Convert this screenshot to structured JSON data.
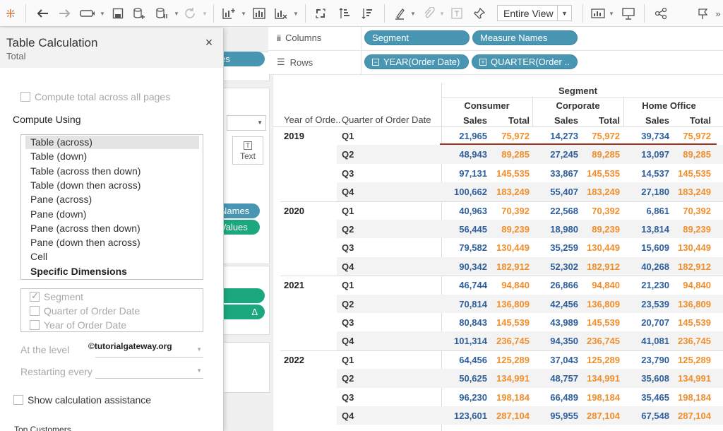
{
  "toolbar": {
    "icons": [
      "tableau-logo-icon",
      "undo-icon",
      "redo-icon",
      "replay-icon",
      "save-icon",
      "new-datasource-icon",
      "pause-updates-icon",
      "refresh-icon",
      "new-worksheet-icon",
      "duplicate-icon",
      "clear-sheet-icon",
      "swap-icon",
      "sort-ascending-icon",
      "sort-descending-icon",
      "highlight-icon",
      "group-icon",
      "label-icon",
      "pin-icon",
      "show-me-icon",
      "presentation-icon",
      "share-icon",
      "pin-icon-2"
    ],
    "fit_label": "Entire View",
    "more": "»"
  },
  "shelves": {
    "columns_label": "Columns",
    "rows_label": "Rows",
    "columns_pills": [
      "Segment",
      "Measure Names"
    ],
    "rows_pills": [
      "YEAR(Order Date)",
      "QUARTER(Order .."
    ]
  },
  "background": {
    "pill_names": "es",
    "text_button": "Text",
    "measure_names": "Names",
    "measure_values": "Values",
    "delta_icon": "Δ",
    "bottom_text": "Top Customers"
  },
  "dialog": {
    "title": "Table Calculation",
    "subtitle": "Total",
    "compute_total_label": "Compute total across all pages",
    "compute_using_label": "Compute Using",
    "options": [
      "Table (across)",
      "Table (down)",
      "Table (across then down)",
      "Table (down then across)",
      "Pane (across)",
      "Pane (down)",
      "Pane (across then down)",
      "Pane (down then across)",
      "Cell",
      "Specific Dimensions"
    ],
    "selected_option": "Table (across)",
    "dimensions": [
      {
        "label": "Segment",
        "checked": true
      },
      {
        "label": "Quarter of Order Date",
        "checked": false
      },
      {
        "label": "Year of Order Date",
        "checked": false
      }
    ],
    "at_level_label": "At the level",
    "restarting_label": "Restarting every",
    "show_assist_label": "Show calculation assistance",
    "watermark": "©tutorialgateway.org"
  },
  "table": {
    "segment_header": "Segment",
    "year_header": "Year of Orde..",
    "quarter_header": "Quarter of Order Date",
    "segments": [
      "Consumer",
      "Corporate",
      "Home Office"
    ],
    "measures": [
      "Sales",
      "Total"
    ],
    "sales_color": "#2e5f9e",
    "total_color": "#f28e2b",
    "years": [
      {
        "year": "2019",
        "quarters": [
          {
            "q": "Q1",
            "vals": [
              "21,965",
              "75,972",
              "14,273",
              "75,972",
              "39,734",
              "75,972"
            ]
          },
          {
            "q": "Q2",
            "vals": [
              "48,943",
              "89,285",
              "27,245",
              "89,285",
              "13,097",
              "89,285"
            ]
          },
          {
            "q": "Q3",
            "vals": [
              "97,131",
              "145,535",
              "33,867",
              "145,535",
              "14,537",
              "145,535"
            ]
          },
          {
            "q": "Q4",
            "vals": [
              "100,662",
              "183,249",
              "55,407",
              "183,249",
              "27,180",
              "183,249"
            ]
          }
        ]
      },
      {
        "year": "2020",
        "quarters": [
          {
            "q": "Q1",
            "vals": [
              "40,963",
              "70,392",
              "22,568",
              "70,392",
              "6,861",
              "70,392"
            ]
          },
          {
            "q": "Q2",
            "vals": [
              "56,445",
              "89,239",
              "18,980",
              "89,239",
              "13,814",
              "89,239"
            ]
          },
          {
            "q": "Q3",
            "vals": [
              "79,582",
              "130,449",
              "35,259",
              "130,449",
              "15,609",
              "130,449"
            ]
          },
          {
            "q": "Q4",
            "vals": [
              "90,342",
              "182,912",
              "52,302",
              "182,912",
              "40,268",
              "182,912"
            ]
          }
        ]
      },
      {
        "year": "2021",
        "quarters": [
          {
            "q": "Q1",
            "vals": [
              "46,744",
              "94,840",
              "26,866",
              "94,840",
              "21,230",
              "94,840"
            ]
          },
          {
            "q": "Q2",
            "vals": [
              "70,814",
              "136,809",
              "42,456",
              "136,809",
              "23,539",
              "136,809"
            ]
          },
          {
            "q": "Q3",
            "vals": [
              "80,843",
              "145,539",
              "43,989",
              "145,539",
              "20,707",
              "145,539"
            ]
          },
          {
            "q": "Q4",
            "vals": [
              "101,314",
              "236,745",
              "94,350",
              "236,745",
              "41,081",
              "236,745"
            ]
          }
        ]
      },
      {
        "year": "2022",
        "quarters": [
          {
            "q": "Q1",
            "vals": [
              "64,456",
              "125,289",
              "37,043",
              "125,289",
              "23,790",
              "125,289"
            ]
          },
          {
            "q": "Q2",
            "vals": [
              "50,625",
              "134,991",
              "48,757",
              "134,991",
              "35,608",
              "134,991"
            ]
          },
          {
            "q": "Q3",
            "vals": [
              "96,230",
              "198,184",
              "66,489",
              "198,184",
              "35,465",
              "198,184"
            ]
          },
          {
            "q": "Q4",
            "vals": [
              "123,601",
              "287,104",
              "95,955",
              "287,104",
              "67,548",
              "287,104"
            ]
          }
        ]
      }
    ]
  }
}
